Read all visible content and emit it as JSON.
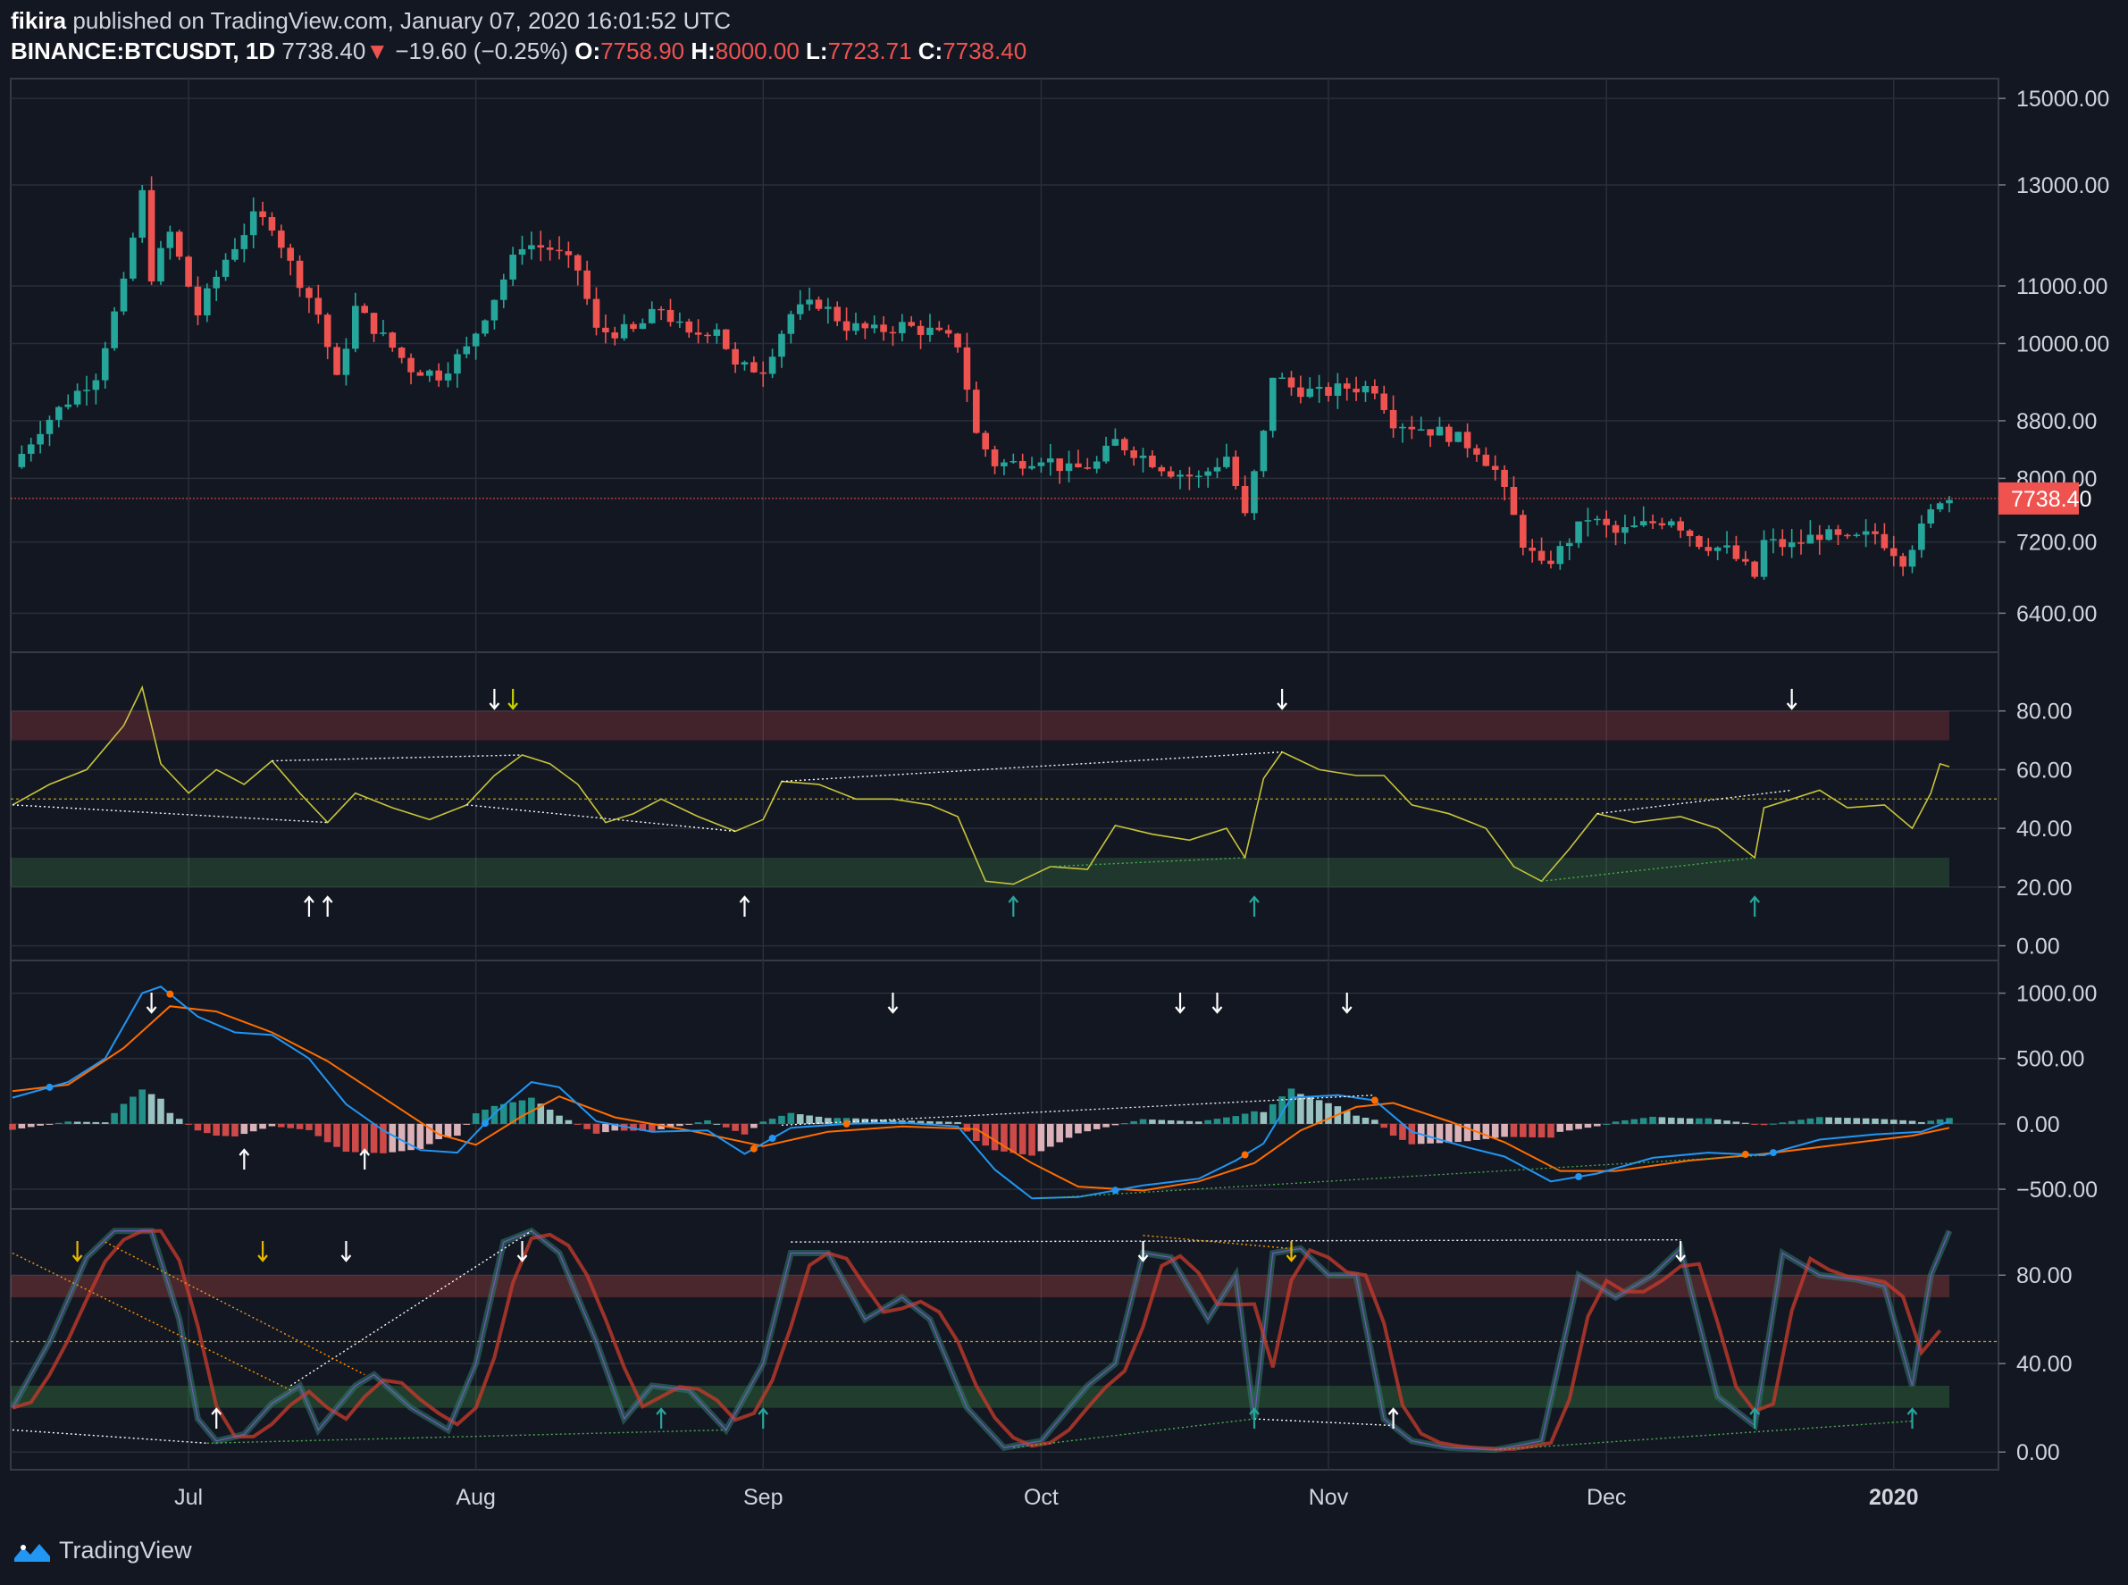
{
  "header": {
    "author": "fikira",
    "published": "published on TradingView.com, January 07, 2020 16:01:52 UTC",
    "symbol": "BINANCE:BTCUSDT, 1D",
    "last": "7738.40",
    "change": "−19.60 (−0.25%)",
    "open_label": "O:",
    "open": "7758.90",
    "high_label": "H:",
    "high": "8000.00",
    "low_label": "L:",
    "low": "7723.71",
    "close_label": "C:",
    "close": "7738.40"
  },
  "footer": {
    "brand": "TradingView"
  },
  "colors": {
    "up": "#26a69a",
    "down": "#ef5350",
    "bg": "#131722",
    "grid": "#2a2e39",
    "rsi": "#c8c43a",
    "macd": "#2196f3",
    "signal": "#ff6d00"
  },
  "chart_data": [
    {
      "type": "candlestick",
      "name": "price",
      "scale": "log",
      "ylim": [
        6000,
        15500
      ],
      "yticks": [
        "15000.00",
        "13000.00",
        "11000.00",
        "10000.00",
        "8800.00",
        "8000.00",
        "7200.00",
        "6400.00"
      ],
      "ytick_values": [
        15000,
        13000,
        11000,
        10000,
        8800,
        8000,
        7200,
        6400
      ],
      "last_price_label": "7738.40",
      "last_price": 7738.4,
      "xticks": [
        "Jul",
        "Aug",
        "Sep",
        "Oct",
        "Nov",
        "Dec",
        "2020"
      ],
      "x_range": [
        "2019-06-12",
        "2020-01-07"
      ],
      "close_path": [
        [
          "2019-06-12",
          8150
        ],
        [
          "2019-06-15",
          8700
        ],
        [
          "2019-06-18",
          9100
        ],
        [
          "2019-06-21",
          9500
        ],
        [
          "2019-06-24",
          11000
        ],
        [
          "2019-06-26",
          12800
        ],
        [
          "2019-06-27",
          11200
        ],
        [
          "2019-06-29",
          12000
        ],
        [
          "2019-07-02",
          10500
        ],
        [
          "2019-07-05",
          11500
        ],
        [
          "2019-07-08",
          12300
        ],
        [
          "2019-07-10",
          12200
        ],
        [
          "2019-07-12",
          11400
        ],
        [
          "2019-07-15",
          10500
        ],
        [
          "2019-07-17",
          9400
        ],
        [
          "2019-07-19",
          10600
        ],
        [
          "2019-07-22",
          10100
        ],
        [
          "2019-07-25",
          9600
        ],
        [
          "2019-07-28",
          9500
        ],
        [
          "2019-07-31",
          9900
        ],
        [
          "2019-08-03",
          10800
        ],
        [
          "2019-08-06",
          11800
        ],
        [
          "2019-08-09",
          11700
        ],
        [
          "2019-08-12",
          11300
        ],
        [
          "2019-08-14",
          10200
        ],
        [
          "2019-08-18",
          10200
        ],
        [
          "2019-08-21",
          10600
        ],
        [
          "2019-08-24",
          10100
        ],
        [
          "2019-08-27",
          10300
        ],
        [
          "2019-08-29",
          9600
        ],
        [
          "2019-09-01",
          9600
        ],
        [
          "2019-09-04",
          10500
        ],
        [
          "2019-09-07",
          10700
        ],
        [
          "2019-09-10",
          10300
        ],
        [
          "2019-09-13",
          10200
        ],
        [
          "2019-09-16",
          10300
        ],
        [
          "2019-09-19",
          10200
        ],
        [
          "2019-09-22",
          10000
        ],
        [
          "2019-09-24",
          8600
        ],
        [
          "2019-09-26",
          8200
        ],
        [
          "2019-09-28",
          8200
        ],
        [
          "2019-10-01",
          8300
        ],
        [
          "2019-10-04",
          8100
        ],
        [
          "2019-10-07",
          8200
        ],
        [
          "2019-10-09",
          8500
        ],
        [
          "2019-10-12",
          8300
        ],
        [
          "2019-10-15",
          8100
        ],
        [
          "2019-10-18",
          8000
        ],
        [
          "2019-10-21",
          8300
        ],
        [
          "2019-10-23",
          7500
        ],
        [
          "2019-10-25",
          8600
        ],
        [
          "2019-10-26",
          9500
        ],
        [
          "2019-10-28",
          9300
        ],
        [
          "2019-10-31",
          9200
        ],
        [
          "2019-11-03",
          9300
        ],
        [
          "2019-11-06",
          9300
        ],
        [
          "2019-11-08",
          8800
        ],
        [
          "2019-11-11",
          8700
        ],
        [
          "2019-11-14",
          8600
        ],
        [
          "2019-11-17",
          8400
        ],
        [
          "2019-11-19",
          8100
        ],
        [
          "2019-11-22",
          7200
        ],
        [
          "2019-11-24",
          6900
        ],
        [
          "2019-11-26",
          7100
        ],
        [
          "2019-11-29",
          7500
        ],
        [
          "2019-12-02",
          7300
        ],
        [
          "2019-12-05",
          7400
        ],
        [
          "2019-12-08",
          7500
        ],
        [
          "2019-12-11",
          7200
        ],
        [
          "2019-12-14",
          7100
        ],
        [
          "2019-12-17",
          6800
        ],
        [
          "2019-12-18",
          7200
        ],
        [
          "2019-12-21",
          7150
        ],
        [
          "2019-12-24",
          7300
        ],
        [
          "2019-12-27",
          7200
        ],
        [
          "2019-12-30",
          7300
        ],
        [
          "2020-01-02",
          7000
        ],
        [
          "2020-01-04",
          7350
        ],
        [
          "2020-01-06",
          7750
        ],
        [
          "2020-01-07",
          7738
        ]
      ]
    },
    {
      "type": "line",
      "name": "rsi",
      "ylim": [
        -5,
        100
      ],
      "yticks": [
        "80.00",
        "60.00",
        "40.00",
        "20.00",
        "0.00"
      ],
      "ytick_values": [
        80,
        60,
        40,
        20,
        0
      ],
      "bands": [
        [
          70,
          80
        ],
        [
          20,
          30
        ]
      ],
      "midline": 50,
      "path": [
        [
          "2019-06-12",
          48
        ],
        [
          "2019-06-16",
          55
        ],
        [
          "2019-06-20",
          60
        ],
        [
          "2019-06-24",
          75
        ],
        [
          "2019-06-26",
          88
        ],
        [
          "2019-06-28",
          62
        ],
        [
          "2019-07-01",
          52
        ],
        [
          "2019-07-04",
          60
        ],
        [
          "2019-07-07",
          55
        ],
        [
          "2019-07-10",
          63
        ],
        [
          "2019-07-13",
          52
        ],
        [
          "2019-07-16",
          42
        ],
        [
          "2019-07-19",
          52
        ],
        [
          "2019-07-23",
          47
        ],
        [
          "2019-07-27",
          43
        ],
        [
          "2019-07-31",
          48
        ],
        [
          "2019-08-03",
          58
        ],
        [
          "2019-08-06",
          65
        ],
        [
          "2019-08-09",
          62
        ],
        [
          "2019-08-12",
          55
        ],
        [
          "2019-08-15",
          42
        ],
        [
          "2019-08-18",
          45
        ],
        [
          "2019-08-21",
          50
        ],
        [
          "2019-08-25",
          44
        ],
        [
          "2019-08-29",
          39
        ],
        [
          "2019-09-01",
          43
        ],
        [
          "2019-09-03",
          56
        ],
        [
          "2019-09-07",
          55
        ],
        [
          "2019-09-11",
          50
        ],
        [
          "2019-09-15",
          50
        ],
        [
          "2019-09-19",
          48
        ],
        [
          "2019-09-22",
          44
        ],
        [
          "2019-09-25",
          22
        ],
        [
          "2019-09-28",
          21
        ],
        [
          "2019-10-02",
          27
        ],
        [
          "2019-10-06",
          26
        ],
        [
          "2019-10-09",
          41
        ],
        [
          "2019-10-13",
          38
        ],
        [
          "2019-10-17",
          36
        ],
        [
          "2019-10-21",
          40
        ],
        [
          "2019-10-23",
          30
        ],
        [
          "2019-10-25",
          57
        ],
        [
          "2019-10-27",
          66
        ],
        [
          "2019-10-31",
          60
        ],
        [
          "2019-11-04",
          58
        ],
        [
          "2019-11-07",
          58
        ],
        [
          "2019-11-10",
          48
        ],
        [
          "2019-11-14",
          45
        ],
        [
          "2019-11-18",
          40
        ],
        [
          "2019-11-21",
          27
        ],
        [
          "2019-11-24",
          22
        ],
        [
          "2019-11-27",
          33
        ],
        [
          "2019-11-30",
          45
        ],
        [
          "2019-12-04",
          42
        ],
        [
          "2019-12-09",
          44
        ],
        [
          "2019-12-13",
          40
        ],
        [
          "2019-12-17",
          30
        ],
        [
          "2019-12-18",
          47
        ],
        [
          "2019-12-21",
          50
        ],
        [
          "2019-12-24",
          53
        ],
        [
          "2019-12-27",
          47
        ],
        [
          "2019-12-31",
          48
        ],
        [
          "2020-01-03",
          40
        ],
        [
          "2020-01-05",
          52
        ],
        [
          "2020-01-06",
          62
        ],
        [
          "2020-01-07",
          61
        ]
      ]
    },
    {
      "type": "line+histogram",
      "name": "macd",
      "ylim": [
        -650,
        1250
      ],
      "yticks": [
        "1000.00",
        "500.00",
        "0.00",
        "−500.00"
      ],
      "ytick_values": [
        1000,
        500,
        0,
        -500
      ],
      "macd_path": [
        [
          "2019-06-12",
          200
        ],
        [
          "2019-06-18",
          320
        ],
        [
          "2019-06-22",
          500
        ],
        [
          "2019-06-26",
          1000
        ],
        [
          "2019-06-28",
          1050
        ],
        [
          "2019-07-02",
          820
        ],
        [
          "2019-07-06",
          700
        ],
        [
          "2019-07-10",
          680
        ],
        [
          "2019-07-14",
          500
        ],
        [
          "2019-07-18",
          150
        ],
        [
          "2019-07-22",
          -50
        ],
        [
          "2019-07-26",
          -200
        ],
        [
          "2019-07-30",
          -220
        ],
        [
          "2019-08-03",
          80
        ],
        [
          "2019-08-07",
          320
        ],
        [
          "2019-08-10",
          280
        ],
        [
          "2019-08-14",
          20
        ],
        [
          "2019-08-20",
          -60
        ],
        [
          "2019-08-26",
          -50
        ],
        [
          "2019-08-30",
          -230
        ],
        [
          "2019-09-04",
          -30
        ],
        [
          "2019-09-10",
          0
        ],
        [
          "2019-09-16",
          10
        ],
        [
          "2019-09-22",
          -20
        ],
        [
          "2019-09-26",
          -350
        ],
        [
          "2019-09-30",
          -570
        ],
        [
          "2019-10-05",
          -560
        ],
        [
          "2019-10-12",
          -470
        ],
        [
          "2019-10-18",
          -420
        ],
        [
          "2019-10-22",
          -280
        ],
        [
          "2019-10-25",
          -150
        ],
        [
          "2019-10-28",
          200
        ],
        [
          "2019-11-02",
          220
        ],
        [
          "2019-11-06",
          180
        ],
        [
          "2019-11-10",
          -60
        ],
        [
          "2019-11-16",
          -180
        ],
        [
          "2019-11-20",
          -250
        ],
        [
          "2019-11-25",
          -440
        ],
        [
          "2019-11-30",
          -380
        ],
        [
          "2019-12-06",
          -260
        ],
        [
          "2019-12-12",
          -220
        ],
        [
          "2019-12-18",
          -240
        ],
        [
          "2019-12-24",
          -120
        ],
        [
          "2019-12-30",
          -80
        ],
        [
          "2020-01-04",
          -60
        ],
        [
          "2020-01-07",
          20
        ]
      ],
      "signal_path": [
        [
          "2019-06-12",
          250
        ],
        [
          "2019-06-18",
          300
        ],
        [
          "2019-06-24",
          580
        ],
        [
          "2019-06-29",
          900
        ],
        [
          "2019-07-04",
          860
        ],
        [
          "2019-07-10",
          700
        ],
        [
          "2019-07-16",
          480
        ],
        [
          "2019-07-22",
          200
        ],
        [
          "2019-07-28",
          -80
        ],
        [
          "2019-08-01",
          -160
        ],
        [
          "2019-08-06",
          60
        ],
        [
          "2019-08-10",
          210
        ],
        [
          "2019-08-16",
          50
        ],
        [
          "2019-08-24",
          -50
        ],
        [
          "2019-09-01",
          -170
        ],
        [
          "2019-09-08",
          -60
        ],
        [
          "2019-09-16",
          -20
        ],
        [
          "2019-09-24",
          -40
        ],
        [
          "2019-09-30",
          -300
        ],
        [
          "2019-10-05",
          -480
        ],
        [
          "2019-10-12",
          -510
        ],
        [
          "2019-10-18",
          -440
        ],
        [
          "2019-10-24",
          -300
        ],
        [
          "2019-10-29",
          -50
        ],
        [
          "2019-11-04",
          130
        ],
        [
          "2019-11-08",
          160
        ],
        [
          "2019-11-14",
          20
        ],
        [
          "2019-11-20",
          -140
        ],
        [
          "2019-11-26",
          -360
        ],
        [
          "2019-12-02",
          -360
        ],
        [
          "2019-12-10",
          -280
        ],
        [
          "2019-12-18",
          -230
        ],
        [
          "2019-12-26",
          -160
        ],
        [
          "2020-01-03",
          -90
        ],
        [
          "2020-01-07",
          -30
        ]
      ]
    },
    {
      "type": "line",
      "name": "stoch-rsi",
      "ylim": [
        -8,
        110
      ],
      "yticks": [
        "80.00",
        "40.00",
        "0.00"
      ],
      "ytick_values": [
        80,
        40,
        0
      ],
      "bands": [
        [
          70,
          80
        ],
        [
          20,
          30
        ]
      ],
      "midline": 50,
      "k_path": [
        [
          "2019-06-12",
          20
        ],
        [
          "2019-06-16",
          50
        ],
        [
          "2019-06-20",
          88
        ],
        [
          "2019-06-23",
          100
        ],
        [
          "2019-06-27",
          100
        ],
        [
          "2019-06-30",
          60
        ],
        [
          "2019-07-02",
          15
        ],
        [
          "2019-07-04",
          5
        ],
        [
          "2019-07-07",
          8
        ],
        [
          "2019-07-10",
          22
        ],
        [
          "2019-07-13",
          30
        ],
        [
          "2019-07-15",
          10
        ],
        [
          "2019-07-19",
          30
        ],
        [
          "2019-07-21",
          35
        ],
        [
          "2019-07-25",
          20
        ],
        [
          "2019-07-29",
          10
        ],
        [
          "2019-08-01",
          40
        ],
        [
          "2019-08-04",
          95
        ],
        [
          "2019-08-07",
          100
        ],
        [
          "2019-08-10",
          90
        ],
        [
          "2019-08-14",
          50
        ],
        [
          "2019-08-17",
          15
        ],
        [
          "2019-08-20",
          30
        ],
        [
          "2019-08-24",
          28
        ],
        [
          "2019-08-28",
          10
        ],
        [
          "2019-09-01",
          40
        ],
        [
          "2019-09-04",
          90
        ],
        [
          "2019-09-08",
          90
        ],
        [
          "2019-09-12",
          60
        ],
        [
          "2019-09-16",
          70
        ],
        [
          "2019-09-19",
          60
        ],
        [
          "2019-09-23",
          20
        ],
        [
          "2019-09-27",
          2
        ],
        [
          "2019-10-01",
          5
        ],
        [
          "2019-10-06",
          30
        ],
        [
          "2019-10-09",
          40
        ],
        [
          "2019-10-12",
          90
        ],
        [
          "2019-10-15",
          88
        ],
        [
          "2019-10-19",
          60
        ],
        [
          "2019-10-22",
          80
        ],
        [
          "2019-10-24",
          15
        ],
        [
          "2019-10-26",
          90
        ],
        [
          "2019-10-29",
          92
        ],
        [
          "2019-11-01",
          80
        ],
        [
          "2019-11-04",
          80
        ],
        [
          "2019-11-07",
          15
        ],
        [
          "2019-11-10",
          5
        ],
        [
          "2019-11-14",
          2
        ],
        [
          "2019-11-19",
          1
        ],
        [
          "2019-11-24",
          5
        ],
        [
          "2019-11-28",
          80
        ],
        [
          "2019-12-02",
          70
        ],
        [
          "2019-12-06",
          80
        ],
        [
          "2019-12-09",
          92
        ],
        [
          "2019-12-13",
          25
        ],
        [
          "2019-12-17",
          12
        ],
        [
          "2019-12-20",
          90
        ],
        [
          "2019-12-24",
          80
        ],
        [
          "2019-12-28",
          78
        ],
        [
          "2019-12-31",
          75
        ],
        [
          "2020-01-03",
          30
        ],
        [
          "2020-01-05",
          80
        ],
        [
          "2020-01-07",
          100
        ]
      ]
    }
  ]
}
